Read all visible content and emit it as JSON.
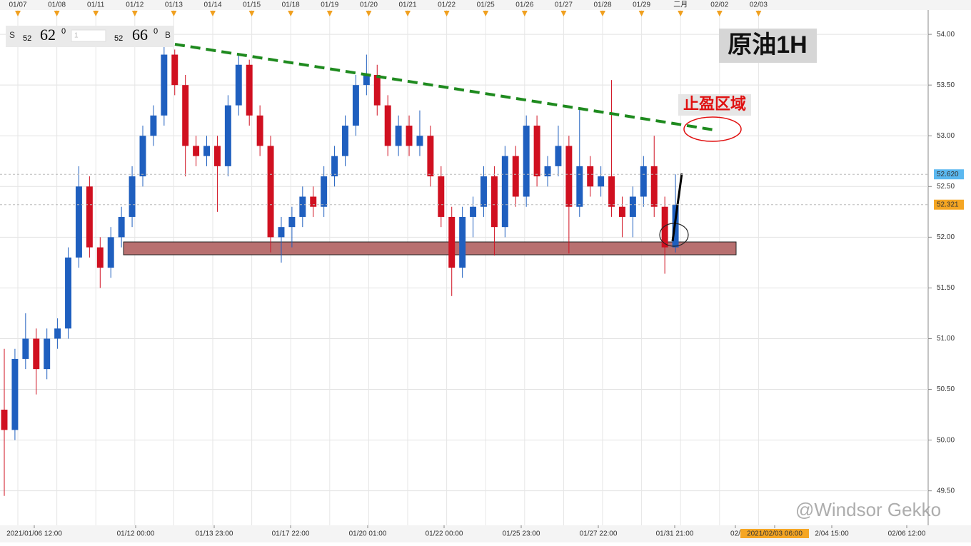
{
  "chart_data": {
    "type": "candlestick",
    "title": "原油1H",
    "annotation": "止盈区域",
    "watermark": "@Windsor Gekko",
    "panel": {
      "sell_label": "S",
      "sell_big": "52",
      "sell_main": "62",
      "sell_sup": "0",
      "lots": "1",
      "buy_big": "52",
      "buy_main": "66",
      "buy_sup": "0",
      "buy_label": "B"
    },
    "top_dates": [
      "01/07",
      "01/08",
      "01/11",
      "01/12",
      "01/13",
      "01/14",
      "01/15",
      "01/18",
      "01/19",
      "01/20",
      "01/21",
      "01/22",
      "01/25",
      "01/26",
      "01/27",
      "01/28",
      "01/29",
      "二月",
      "02/02",
      "02/03"
    ],
    "bottom_times": [
      "2021/01/06 12:00",
      "01/12 00:00",
      "01/13 23:00",
      "01/17 22:00",
      "01/20 01:00",
      "01/22 00:00",
      "01/25 23:00",
      "01/27 22:00",
      "01/31 21:00",
      "02/",
      "2021/02/03 06:00",
      "2/04 15:00",
      "02/06 12:00"
    ],
    "ylim": [
      49.16,
      54.24
    ],
    "yticks": [
      {
        "value": 49.5,
        "label": "49.50"
      },
      {
        "value": 50,
        "label": "50.00"
      },
      {
        "value": 50.5,
        "label": "50.50"
      },
      {
        "value": 51,
        "label": "51.00"
      },
      {
        "value": 51.5,
        "label": "51.50"
      },
      {
        "value": 52,
        "label": "52.00"
      },
      {
        "value": 52.5,
        "label": "52.50"
      },
      {
        "value": 53,
        "label": "53.00"
      },
      {
        "value": 53.5,
        "label": "53.50"
      },
      {
        "value": 54,
        "label": "54.00"
      }
    ],
    "price_markers": [
      {
        "value": 52.62,
        "label": "52.620",
        "color": "#5bb8f0"
      },
      {
        "value": 52.321,
        "label": "52.321",
        "color": "#f5a623"
      }
    ],
    "up_color": "#1f5fbf",
    "down_color": "#d01020",
    "grid": true,
    "candles": [
      [
        50.3,
        50.9,
        49.45,
        50.1
      ],
      [
        50.1,
        50.9,
        50.0,
        50.8
      ],
      [
        50.8,
        51.25,
        50.7,
        51.0
      ],
      [
        51.0,
        51.1,
        50.45,
        50.7
      ],
      [
        50.7,
        51.1,
        50.6,
        51.0
      ],
      [
        51.0,
        51.2,
        50.9,
        51.1
      ],
      [
        51.1,
        51.9,
        51.0,
        51.8
      ],
      [
        51.8,
        52.7,
        51.7,
        52.5
      ],
      [
        52.5,
        52.6,
        51.8,
        51.9
      ],
      [
        51.9,
        52.0,
        51.5,
        51.7
      ],
      [
        51.7,
        52.1,
        51.6,
        52.0
      ],
      [
        52.0,
        52.3,
        51.9,
        52.2
      ],
      [
        52.2,
        52.7,
        52.1,
        52.6
      ],
      [
        52.6,
        53.1,
        52.5,
        53.0
      ],
      [
        53.0,
        53.3,
        52.9,
        53.2
      ],
      [
        53.2,
        53.93,
        53.1,
        53.8
      ],
      [
        53.8,
        53.85,
        53.4,
        53.5
      ],
      [
        53.5,
        53.6,
        52.6,
        52.9
      ],
      [
        52.9,
        53.0,
        52.7,
        52.8
      ],
      [
        52.8,
        53.0,
        52.7,
        52.9
      ],
      [
        52.9,
        53.0,
        52.25,
        52.7
      ],
      [
        52.7,
        53.4,
        52.6,
        53.3
      ],
      [
        53.3,
        53.8,
        53.2,
        53.7
      ],
      [
        53.7,
        53.75,
        53.1,
        53.2
      ],
      [
        53.2,
        53.3,
        52.8,
        52.9
      ],
      [
        52.9,
        53.0,
        51.85,
        52.0
      ],
      [
        52.0,
        52.2,
        51.75,
        52.1
      ],
      [
        52.1,
        52.3,
        51.9,
        52.2
      ],
      [
        52.2,
        52.5,
        52.1,
        52.4
      ],
      [
        52.4,
        52.5,
        52.2,
        52.3
      ],
      [
        52.3,
        52.7,
        52.2,
        52.6
      ],
      [
        52.6,
        52.9,
        52.5,
        52.8
      ],
      [
        52.8,
        53.2,
        52.7,
        53.1
      ],
      [
        53.1,
        53.6,
        53.0,
        53.5
      ],
      [
        53.5,
        53.8,
        53.4,
        53.6
      ],
      [
        53.6,
        53.7,
        53.2,
        53.3
      ],
      [
        53.3,
        53.4,
        52.8,
        52.9
      ],
      [
        52.9,
        53.2,
        52.8,
        53.1
      ],
      [
        53.1,
        53.2,
        52.8,
        52.9
      ],
      [
        52.9,
        53.25,
        52.8,
        53.0
      ],
      [
        53.0,
        53.1,
        52.5,
        52.6
      ],
      [
        52.6,
        52.7,
        52.1,
        52.2
      ],
      [
        52.2,
        52.3,
        51.42,
        51.7
      ],
      [
        51.7,
        52.3,
        51.6,
        52.2
      ],
      [
        52.2,
        52.4,
        52.0,
        52.3
      ],
      [
        52.3,
        52.7,
        52.2,
        52.6
      ],
      [
        52.6,
        52.7,
        51.82,
        52.1
      ],
      [
        52.1,
        52.9,
        52.0,
        52.8
      ],
      [
        52.8,
        52.9,
        52.3,
        52.4
      ],
      [
        52.4,
        53.2,
        52.3,
        53.1
      ],
      [
        53.1,
        53.2,
        52.5,
        52.6
      ],
      [
        52.6,
        52.8,
        52.5,
        52.7
      ],
      [
        52.7,
        53.1,
        52.6,
        52.9
      ],
      [
        52.9,
        53.0,
        51.84,
        52.3
      ],
      [
        52.3,
        53.27,
        52.2,
        52.7
      ],
      [
        52.7,
        52.8,
        52.4,
        52.5
      ],
      [
        52.5,
        52.7,
        52.4,
        52.6
      ],
      [
        52.6,
        53.55,
        52.2,
        52.3
      ],
      [
        52.3,
        52.4,
        52.0,
        52.2
      ],
      [
        52.2,
        52.5,
        52.0,
        52.4
      ],
      [
        52.4,
        52.8,
        52.3,
        52.7
      ],
      [
        52.7,
        53.0,
        52.2,
        52.3
      ],
      [
        52.3,
        52.4,
        51.64,
        51.9
      ],
      [
        51.9,
        52.62,
        51.85,
        52.32
      ]
    ]
  }
}
